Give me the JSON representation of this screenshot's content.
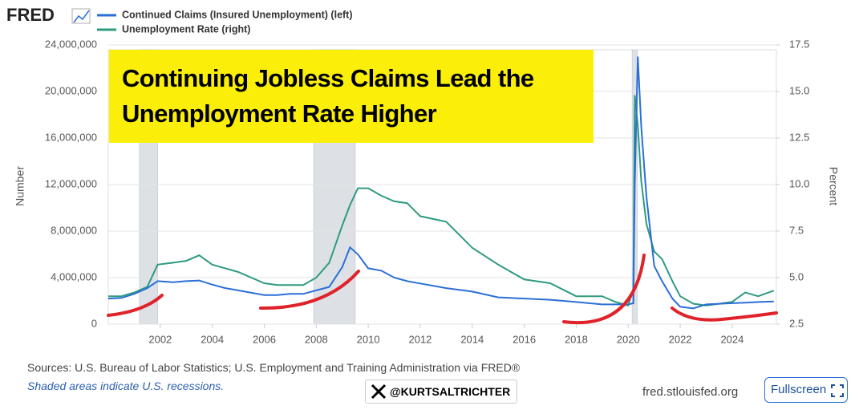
{
  "brand": "FRED",
  "chart_data": {
    "type": "line",
    "x": [
      2000.0,
      2000.5,
      2001.0,
      2001.5,
      2001.9,
      2002.5,
      2003.0,
      2003.5,
      2004.0,
      2004.5,
      2005.0,
      2005.5,
      2006.0,
      2006.5,
      2007.0,
      2007.5,
      2008.0,
      2008.5,
      2009.0,
      2009.3,
      2009.6,
      2010.0,
      2010.5,
      2011.0,
      2011.5,
      2012.0,
      2013.0,
      2014.0,
      2015.0,
      2016.0,
      2017.0,
      2018.0,
      2019.0,
      2019.5,
      2020.0,
      2020.2,
      2020.25,
      2020.37,
      2020.5,
      2020.7,
      2021.0,
      2021.3,
      2021.7,
      2022.0,
      2022.5,
      2023.0,
      2023.5,
      2024.0,
      2024.5,
      2025.0,
      2025.6
    ],
    "series": [
      {
        "name": "Continued Claims (Insured Unemployment) (left)",
        "color": "#2b6fd6",
        "values": [
          2200000,
          2250000,
          2600000,
          3100000,
          3700000,
          3600000,
          3700000,
          3750000,
          3400000,
          3100000,
          2900000,
          2700000,
          2500000,
          2500000,
          2600000,
          2600000,
          2900000,
          3200000,
          4900000,
          6600000,
          6000000,
          4800000,
          4600000,
          4000000,
          3700000,
          3500000,
          3100000,
          2800000,
          2300000,
          2200000,
          2100000,
          1900000,
          1700000,
          1700000,
          1700000,
          1800000,
          12000000,
          23000000,
          17000000,
          11000000,
          5000000,
          3700000,
          2200000,
          1500000,
          1350000,
          1700000,
          1750000,
          1800000,
          1850000,
          1900000,
          1950000
        ]
      },
      {
        "name": "Unemployment Rate (right)",
        "color": "#2e9a80",
        "axis": "y2",
        "values": [
          4.0,
          4.0,
          4.2,
          4.5,
          5.7,
          5.8,
          5.9,
          6.2,
          5.7,
          5.5,
          5.3,
          5.0,
          4.7,
          4.6,
          4.6,
          4.6,
          5.0,
          5.8,
          7.8,
          8.9,
          9.8,
          9.8,
          9.4,
          9.1,
          9.0,
          8.3,
          8.0,
          6.6,
          5.7,
          4.9,
          4.7,
          4.0,
          4.0,
          3.7,
          3.5,
          4.4,
          14.8,
          13.2,
          10.2,
          7.9,
          6.4,
          6.0,
          4.8,
          4.0,
          3.6,
          3.5,
          3.6,
          3.7,
          4.2,
          4.0,
          4.3
        ]
      }
    ],
    "recessions": [
      [
        2001.2,
        2001.9
      ],
      [
        2007.9,
        2009.5
      ],
      [
        2020.15,
        2020.35
      ]
    ],
    "xlim": [
      2000.0,
      2025.7
    ],
    "xticks": [
      2002,
      2004,
      2006,
      2008,
      2010,
      2012,
      2014,
      2016,
      2018,
      2020,
      2022,
      2024
    ],
    "ylim": [
      0,
      24000000
    ],
    "yticks": [
      0,
      {
        "value": 4000000,
        "label": "4,000,000"
      },
      {
        "value": 8000000,
        "label": "8,000,000"
      },
      {
        "value": 12000000,
        "label": "12,000,000"
      },
      {
        "value": 16000000,
        "label": "16,000,000"
      },
      {
        "value": 20000000,
        "label": "20,000,000"
      },
      {
        "value": 24000000,
        "label": "24,000,000"
      }
    ],
    "y2lim": [
      2.5,
      17.5
    ],
    "y2ticks": [
      2.5,
      {
        "value": 5,
        "label": "5.0"
      },
      7.5,
      {
        "value": 10,
        "label": "10.0"
      },
      12.5,
      {
        "value": 15,
        "label": "15.0"
      },
      17.5
    ],
    "ylabel": "Number",
    "y2label": "Percent",
    "grid": true,
    "title": "Continuing Jobless Claims Lead the Unemployment Rate Higher"
  },
  "footer": {
    "sources": "Sources: U.S. Bureau of Labor Statistics; U.S. Employment and Training Administration via FRED®",
    "note": "Shaded areas indicate U.S. recessions.",
    "handle": "@KURTSALTRICHTER",
    "site": "fred.stlouisfed.org",
    "button": "Fullscreen"
  }
}
